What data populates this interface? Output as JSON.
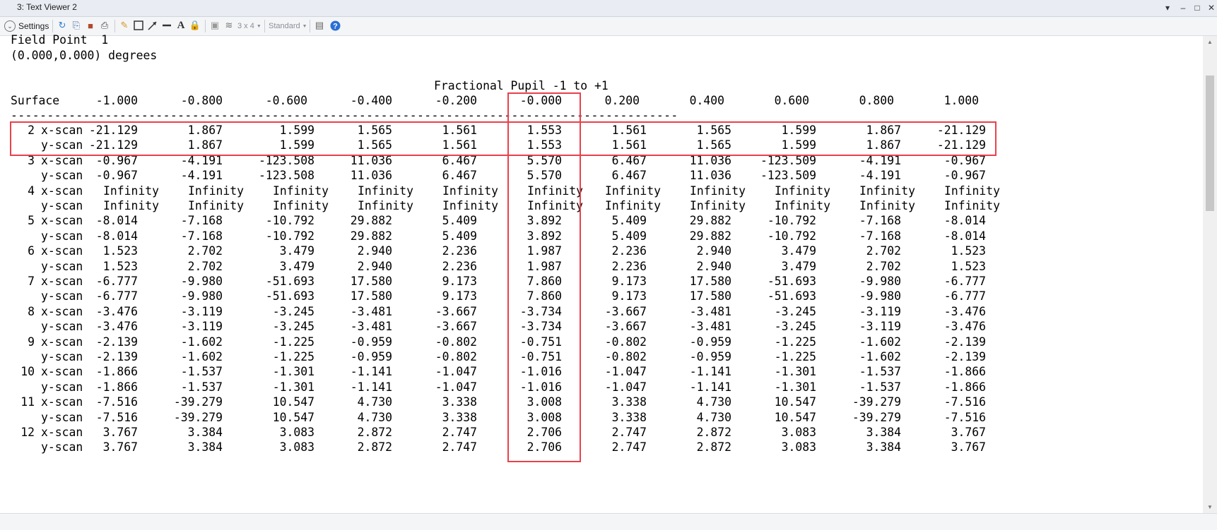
{
  "window": {
    "title": "3: Text Viewer 2",
    "controls": [
      "▾",
      "–",
      "□",
      "✕"
    ]
  },
  "toolbar": {
    "settings_label": "Settings",
    "layout_value": "3 x 4",
    "style_value": "Standard"
  },
  "report": {
    "field_line": "Field Point  1",
    "angle_line": "(0.000,0.000) degrees",
    "pupil_title": "Fractional Pupil -1 to +1",
    "surface_header": "Surface",
    "columns": [
      "-1.000",
      "-0.800",
      "-0.600",
      "-0.400",
      "-0.200",
      "-0.000",
      "0.200",
      "0.400",
      "0.600",
      "0.800",
      "1.000"
    ],
    "divider": "--------------------------------------------------------------------------------------------",
    "rows": [
      {
        "surface": "2",
        "scan": "x-scan",
        "values": [
          "-21.129",
          "1.867",
          "1.599",
          "1.565",
          "1.561",
          "1.553",
          "1.561",
          "1.565",
          "1.599",
          "1.867",
          "-21.129"
        ]
      },
      {
        "surface": "",
        "scan": "y-scan",
        "values": [
          "-21.129",
          "1.867",
          "1.599",
          "1.565",
          "1.561",
          "1.553",
          "1.561",
          "1.565",
          "1.599",
          "1.867",
          "-21.129"
        ]
      },
      {
        "surface": "3",
        "scan": "x-scan",
        "values": [
          "-0.967",
          "-4.191",
          "-123.508",
          "11.036",
          "6.467",
          "5.570",
          "6.467",
          "11.036",
          "-123.509",
          "-4.191",
          "-0.967"
        ]
      },
      {
        "surface": "",
        "scan": "y-scan",
        "values": [
          "-0.967",
          "-4.191",
          "-123.508",
          "11.036",
          "6.467",
          "5.570",
          "6.467",
          "11.036",
          "-123.509",
          "-4.191",
          "-0.967"
        ]
      },
      {
        "surface": "4",
        "scan": "x-scan",
        "values": [
          "Infinity",
          "Infinity",
          "Infinity",
          "Infinity",
          "Infinity",
          "Infinity",
          "Infinity",
          "Infinity",
          "Infinity",
          "Infinity",
          "Infinity"
        ]
      },
      {
        "surface": "",
        "scan": "y-scan",
        "values": [
          "Infinity",
          "Infinity",
          "Infinity",
          "Infinity",
          "Infinity",
          "Infinity",
          "Infinity",
          "Infinity",
          "Infinity",
          "Infinity",
          "Infinity"
        ]
      },
      {
        "surface": "5",
        "scan": "x-scan",
        "values": [
          "-8.014",
          "-7.168",
          "-10.792",
          "29.882",
          "5.409",
          "3.892",
          "5.409",
          "29.882",
          "-10.792",
          "-7.168",
          "-8.014"
        ]
      },
      {
        "surface": "",
        "scan": "y-scan",
        "values": [
          "-8.014",
          "-7.168",
          "-10.792",
          "29.882",
          "5.409",
          "3.892",
          "5.409",
          "29.882",
          "-10.792",
          "-7.168",
          "-8.014"
        ]
      },
      {
        "surface": "6",
        "scan": "x-scan",
        "values": [
          "1.523",
          "2.702",
          "3.479",
          "2.940",
          "2.236",
          "1.987",
          "2.236",
          "2.940",
          "3.479",
          "2.702",
          "1.523"
        ]
      },
      {
        "surface": "",
        "scan": "y-scan",
        "values": [
          "1.523",
          "2.702",
          "3.479",
          "2.940",
          "2.236",
          "1.987",
          "2.236",
          "2.940",
          "3.479",
          "2.702",
          "1.523"
        ]
      },
      {
        "surface": "7",
        "scan": "x-scan",
        "values": [
          "-6.777",
          "-9.980",
          "-51.693",
          "17.580",
          "9.173",
          "7.860",
          "9.173",
          "17.580",
          "-51.693",
          "-9.980",
          "-6.777"
        ]
      },
      {
        "surface": "",
        "scan": "y-scan",
        "values": [
          "-6.777",
          "-9.980",
          "-51.693",
          "17.580",
          "9.173",
          "7.860",
          "9.173",
          "17.580",
          "-51.693",
          "-9.980",
          "-6.777"
        ]
      },
      {
        "surface": "8",
        "scan": "x-scan",
        "values": [
          "-3.476",
          "-3.119",
          "-3.245",
          "-3.481",
          "-3.667",
          "-3.734",
          "-3.667",
          "-3.481",
          "-3.245",
          "-3.119",
          "-3.476"
        ]
      },
      {
        "surface": "",
        "scan": "y-scan",
        "values": [
          "-3.476",
          "-3.119",
          "-3.245",
          "-3.481",
          "-3.667",
          "-3.734",
          "-3.667",
          "-3.481",
          "-3.245",
          "-3.119",
          "-3.476"
        ]
      },
      {
        "surface": "9",
        "scan": "x-scan",
        "values": [
          "-2.139",
          "-1.602",
          "-1.225",
          "-0.959",
          "-0.802",
          "-0.751",
          "-0.802",
          "-0.959",
          "-1.225",
          "-1.602",
          "-2.139"
        ]
      },
      {
        "surface": "",
        "scan": "y-scan",
        "values": [
          "-2.139",
          "-1.602",
          "-1.225",
          "-0.959",
          "-0.802",
          "-0.751",
          "-0.802",
          "-0.959",
          "-1.225",
          "-1.602",
          "-2.139"
        ]
      },
      {
        "surface": "10",
        "scan": "x-scan",
        "values": [
          "-1.866",
          "-1.537",
          "-1.301",
          "-1.141",
          "-1.047",
          "-1.016",
          "-1.047",
          "-1.141",
          "-1.301",
          "-1.537",
          "-1.866"
        ]
      },
      {
        "surface": "",
        "scan": "y-scan",
        "values": [
          "-1.866",
          "-1.537",
          "-1.301",
          "-1.141",
          "-1.047",
          "-1.016",
          "-1.047",
          "-1.141",
          "-1.301",
          "-1.537",
          "-1.866"
        ]
      },
      {
        "surface": "11",
        "scan": "x-scan",
        "values": [
          "-7.516",
          "-39.279",
          "10.547",
          "4.730",
          "3.338",
          "3.008",
          "3.338",
          "4.730",
          "10.547",
          "-39.279",
          "-7.516"
        ]
      },
      {
        "surface": "",
        "scan": "y-scan",
        "values": [
          "-7.516",
          "-39.279",
          "10.547",
          "4.730",
          "3.338",
          "3.008",
          "3.338",
          "4.730",
          "10.547",
          "-39.279",
          "-7.516"
        ]
      },
      {
        "surface": "12",
        "scan": "x-scan",
        "values": [
          "3.767",
          "3.384",
          "3.083",
          "2.872",
          "2.747",
          "2.706",
          "2.747",
          "2.872",
          "3.083",
          "3.384",
          "3.767"
        ]
      },
      {
        "surface": "",
        "scan": "y-scan",
        "values": [
          "3.767",
          "3.384",
          "3.083",
          "2.872",
          "2.747",
          "2.706",
          "2.747",
          "2.872",
          "3.083",
          "3.384",
          "3.767"
        ]
      }
    ]
  },
  "colors": {
    "highlight": "#e8414b",
    "titlebar": "#e9ecf2",
    "toolbar": "#f4f5f7"
  }
}
